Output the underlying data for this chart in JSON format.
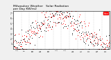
{
  "title": "Milwaukee Weather   Solar Radiation\nper Day KW/m2",
  "title_fontsize": 3.2,
  "background_color": "#f0f0f0",
  "plot_bg_color": "#ffffff",
  "ylim": [
    0,
    7.5
  ],
  "ytick_values": [
    1,
    2,
    3,
    4,
    5,
    6,
    7
  ],
  "dot_color_main": "#ff0000",
  "dot_color_alt": "#000000",
  "legend_label": "Solar",
  "legend_color": "#ff0000",
  "num_points": 365,
  "month_days": [
    31,
    28,
    31,
    30,
    31,
    30,
    31,
    31,
    30,
    31,
    30,
    31
  ],
  "short_months": [
    "J",
    "F",
    "M",
    "A",
    "M",
    "J",
    "J",
    "A",
    "S",
    "O",
    "N",
    "D"
  ]
}
